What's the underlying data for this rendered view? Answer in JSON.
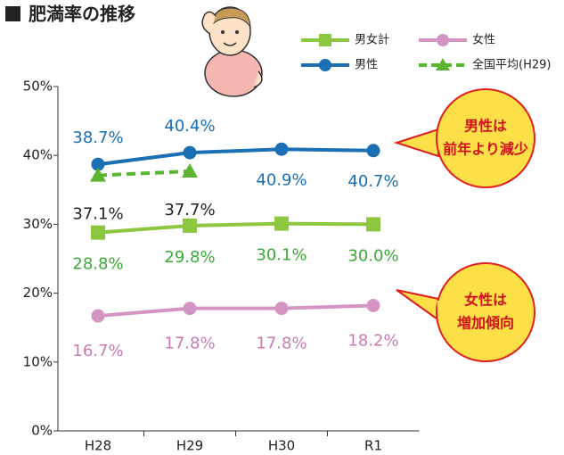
{
  "chart_data": {
    "type": "line",
    "title": "肥満率の推移",
    "categories": [
      "H28",
      "H29",
      "H30",
      "R1"
    ],
    "ylim": [
      0,
      50
    ],
    "yticks": [
      {
        "value": 0,
        "label": "0%"
      },
      {
        "value": 10,
        "label": "10%"
      },
      {
        "value": 20,
        "label": "20%"
      },
      {
        "value": 30,
        "label": "30%"
      },
      {
        "value": 40,
        "label": "40%"
      },
      {
        "value": 50,
        "label": "50%"
      }
    ],
    "series": [
      {
        "name": "男女計",
        "color": "#8dc63f",
        "label_color": "#3aaa35",
        "marker": "square",
        "values": [
          28.8,
          29.8,
          30.1,
          30.0
        ],
        "value_labels": [
          "28.8%",
          "29.8%",
          "30.1%",
          "30.0%"
        ]
      },
      {
        "name": "女性",
        "color": "#d595c4",
        "label_color": "#c97bb5",
        "marker": "circle",
        "values": [
          16.7,
          17.8,
          17.8,
          18.2
        ],
        "value_labels": [
          "16.7%",
          "17.8%",
          "17.8%",
          "18.2%"
        ]
      },
      {
        "name": "男性",
        "color": "#1a6fb5",
        "label_color": "#1a6fb5",
        "marker": "circle",
        "values": [
          38.7,
          40.4,
          40.9,
          40.7
        ],
        "value_labels": [
          "38.7%",
          "40.4%",
          "40.9%",
          "40.7%"
        ]
      },
      {
        "name": "全国平均(H29)",
        "color": "#5cb531",
        "label_color": "#222222",
        "marker": "triangle",
        "dashed": true,
        "values": [
          37.1,
          37.7,
          null,
          null
        ],
        "value_labels": [
          "37.1%",
          "37.7%",
          null,
          null
        ]
      }
    ],
    "annotations": [
      [
        "男性は",
        "前年より減少"
      ],
      [
        "女性は",
        "増加傾向"
      ]
    ]
  }
}
